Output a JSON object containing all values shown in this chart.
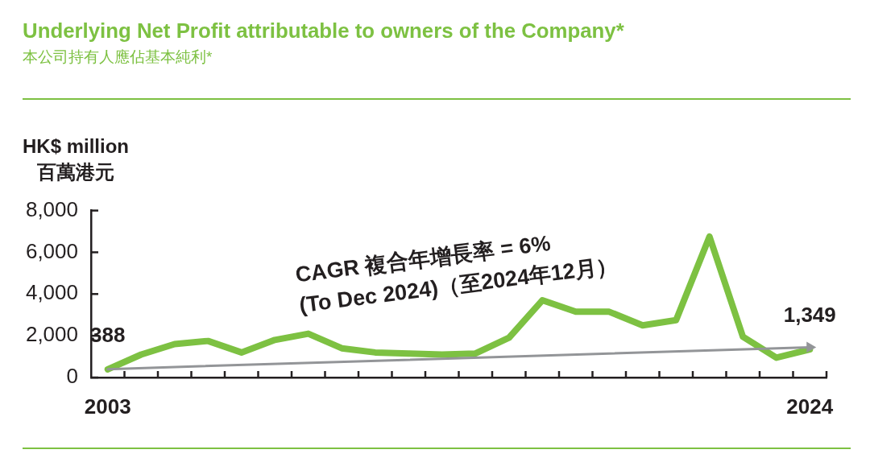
{
  "chart_data": {
    "type": "line",
    "title": "Underlying Net Profit attributable to owners of the Company*",
    "subtitle": "本公司持有人應佔基本純利*",
    "ylabel": "HK$ million\n百萬港元",
    "annotations": [
      "CAGR 複合年增長率 = 6%",
      "(To Dec 2024)（至2024年12月）"
    ],
    "x": [
      2003,
      2004,
      2005,
      2006,
      2007,
      2008,
      2009,
      2010,
      2011,
      2012,
      2013,
      2014,
      2015,
      2016,
      2017,
      2018,
      2019,
      2020,
      2021,
      2022,
      2023,
      2024
    ],
    "series": [
      {
        "color": "#7dc142",
        "values": [
          388,
          1100,
          1600,
          1750,
          1200,
          1800,
          2100,
          1400,
          1200,
          1150,
          1100,
          1150,
          1900,
          3700,
          3150,
          3150,
          2500,
          2750,
          6750,
          1950,
          950,
          1349
        ],
        "value_labels": [
          "388",
          null,
          null,
          null,
          null,
          null,
          null,
          null,
          null,
          null,
          null,
          null,
          null,
          null,
          null,
          null,
          null,
          null,
          null,
          null,
          null,
          "1,349"
        ]
      },
      {
        "type": "line",
        "color": "#939598",
        "x": [
          2003,
          2024
        ],
        "values": [
          400,
          1450
        ]
      }
    ],
    "xlim": [
      2002.5,
      2024.5
    ],
    "xticks": [
      2003,
      {
        "value": 2003.5,
        "label": null
      },
      {
        "value": 2004.5,
        "label": null
      },
      {
        "value": 2005.5,
        "label": null
      },
      {
        "value": 2006.5,
        "label": null
      },
      {
        "value": 2007.5,
        "label": null
      },
      {
        "value": 2008.5,
        "label": null
      },
      {
        "value": 2009.5,
        "label": null
      },
      {
        "value": 2010.5,
        "label": null
      },
      {
        "value": 2011.5,
        "label": null
      },
      {
        "value": 2012.5,
        "label": null
      },
      {
        "value": 2013.5,
        "label": null
      },
      {
        "value": 2014.5,
        "label": null
      },
      {
        "value": 2015.5,
        "label": null
      },
      {
        "value": 2016.5,
        "label": null
      },
      {
        "value": 2017.5,
        "label": null
      },
      {
        "value": 2018.5,
        "label": null
      },
      {
        "value": 2019.5,
        "label": null
      },
      {
        "value": 2020.5,
        "label": null
      },
      {
        "value": 2021.5,
        "label": null
      },
      {
        "value": 2022.5,
        "label": null
      },
      {
        "value": 2023.5,
        "label": null
      },
      2024,
      {
        "value": 2024.5,
        "label": null
      }
    ],
    "ylim": [
      0,
      8000
    ],
    "yticks": [
      0,
      {
        "value": 2000,
        "label": "2,000"
      },
      {
        "value": 4000,
        "label": "4,000"
      },
      {
        "value": 6000,
        "label": "6,000"
      },
      {
        "value": 8000,
        "label": "8,000"
      }
    ]
  }
}
